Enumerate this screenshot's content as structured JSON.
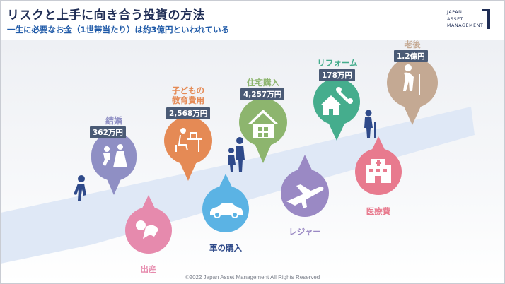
{
  "header": {
    "title": "リスクと上手に向き合う投資の方法",
    "subtitle": "一生に必要なお金（1世帯当たり）は約3億円といわれている"
  },
  "logo": {
    "line1": "JAPAN",
    "line2": "ASSET",
    "line3": "MANAGEMENT"
  },
  "colors": {
    "marriage": "#8f8fc4",
    "education": "#e58a55",
    "housing": "#8db56e",
    "reform": "#45ad8d",
    "retirement": "#c4a993",
    "birth": "#e68aad",
    "car": "#5bb3e4",
    "leisure": "#9a89c4",
    "medical": "#e87a8e",
    "road": "#dfe8f6",
    "amount_bg": "#4a5a75",
    "person": "#2f4a8a"
  },
  "events_above": [
    {
      "id": "marriage",
      "label": "結婚",
      "amount": "362万円",
      "icon": "wedding-icon"
    },
    {
      "id": "education",
      "label": "子どもの\n教育費用",
      "amount": "2,568万円",
      "icon": "study-desk-icon"
    },
    {
      "id": "housing",
      "label": "住宅購入",
      "amount": "4,257万円",
      "icon": "house-icon"
    },
    {
      "id": "reform",
      "label": "リフォーム",
      "amount": "178万円",
      "icon": "house-wrench-icon"
    },
    {
      "id": "retirement",
      "label": "老後",
      "amount": "1.2億円",
      "icon": "elderly-person-icon"
    }
  ],
  "events_below": [
    {
      "id": "birth",
      "label": "出産",
      "icon": "baby-icon"
    },
    {
      "id": "car",
      "label": "車の購入",
      "icon": "car-icon"
    },
    {
      "id": "leisure",
      "label": "レジャー",
      "icon": "airplane-icon"
    },
    {
      "id": "medical",
      "label": "医療費",
      "icon": "hospital-icon"
    }
  ],
  "footer": {
    "copyright": "©2022 Japan Asset Management All Rights Reserved"
  }
}
